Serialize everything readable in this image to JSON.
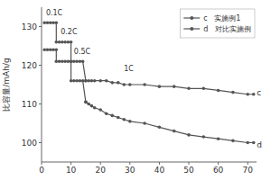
{
  "chart_data": {
    "type": "line",
    "ylabel": "比容量/mAh/g",
    "xlim": [
      0,
      73
    ],
    "ylim": [
      95,
      135
    ],
    "xticks": [
      0,
      10,
      20,
      30,
      40,
      50,
      60,
      70
    ],
    "yticks": [
      100,
      110,
      120,
      130
    ],
    "grid": false,
    "legend": "upper right",
    "marker": "circle",
    "x": [
      1,
      2,
      3,
      4,
      5,
      5,
      6,
      7,
      8,
      9,
      10,
      10,
      11,
      12,
      13,
      14,
      15,
      15,
      16,
      17,
      18,
      20,
      22,
      24,
      26,
      28,
      30,
      35,
      40,
      45,
      50,
      55,
      60,
      65,
      70,
      72
    ],
    "series": [
      {
        "name": "c   实施例1",
        "color": "#555555",
        "values": [
          131,
          131,
          131,
          131,
          131,
          126,
          126,
          126,
          126,
          126,
          126,
          121,
          121,
          121,
          121,
          121,
          116,
          116,
          116,
          116,
          116,
          116,
          116,
          115.5,
          115.5,
          115,
          115,
          115,
          114.5,
          114.5,
          114,
          114,
          113.5,
          113,
          112.5,
          112.5
        ]
      },
      {
        "name": "d   对比实施例",
        "color": "#555555",
        "values": [
          124,
          124,
          124,
          124,
          124,
          121,
          121,
          121,
          121,
          121,
          121,
          116,
          116,
          116,
          116,
          116,
          110.5,
          110.5,
          110,
          109.5,
          109,
          108.5,
          107.5,
          107,
          106.5,
          106,
          105.5,
          105,
          104,
          103,
          102,
          101.5,
          101,
          100.5,
          100,
          100
        ]
      }
    ],
    "annotations": [
      {
        "text": "0.1C",
        "x": 1.5,
        "y": 132.5
      },
      {
        "text": "0.2C",
        "x": 6.5,
        "y": 127.5
      },
      {
        "text": "0.5C",
        "x": 11,
        "y": 122.5
      },
      {
        "text": "1C",
        "x": 28,
        "y": 118
      },
      {
        "text": "c",
        "x": 72.5,
        "y": 113
      },
      {
        "text": "d",
        "x": 72.5,
        "y": 99.5
      }
    ]
  }
}
